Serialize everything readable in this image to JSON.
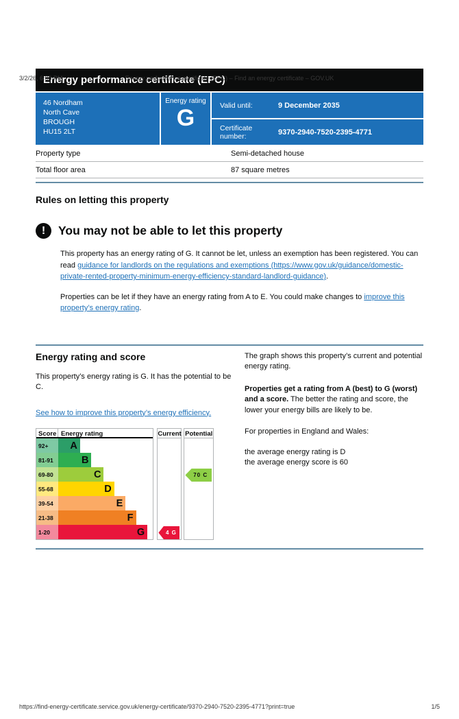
{
  "print_header": {
    "datetime": "3/2/26, 6:00 PM",
    "title": "Energy performance certificate (EPC) – Find an energy certificate – GOV.UK"
  },
  "print_footer": {
    "url": "https://find-energy-certificate.service.gov.uk/energy-certificate/9370-2940-7520-2395-4771?print=true",
    "page": "1/5"
  },
  "banner": {
    "title": "Energy performance certificate (EPC)"
  },
  "certificate": {
    "address_lines": [
      "46 Nordham",
      "North Cave",
      "BROUGH",
      "HU15 2LT"
    ],
    "rating_label": "Energy rating",
    "rating": "G",
    "valid_until_label": "Valid until:",
    "valid_until": "9 December 2035",
    "certificate_number_label": "Certificate number:",
    "certificate_number": "9370-2940-7520-2395-4771"
  },
  "property": {
    "rows": [
      {
        "label": "Property type",
        "value": "Semi-detached house"
      },
      {
        "label": "Total floor area",
        "value": "87 square metres"
      }
    ]
  },
  "rules": {
    "heading": "Rules on letting this property",
    "warning_title": "You may not be able to let this property",
    "para1_before": "This property has an energy rating of G. It cannot be let, unless an exemption has been registered. You can read ",
    "para1_link": "guidance for landlords on the regulations and exemptions (https://www.gov.uk/guidance/domestic-private-rented-property-minimum-energy-efficiency-standard-landlord-guidance)",
    "para1_after": ".",
    "para2_before": "Properties can be let if they have an energy rating from A to E. You could make changes to ",
    "para2_link": "improve this property’s energy rating",
    "para2_after": "."
  },
  "rating_section": {
    "heading": "Energy rating and score",
    "intro": "This property’s energy rating is G. It has the potential to be C.",
    "improve_link": "See how to improve this property’s energy efficiency.",
    "right_para1": "The graph shows this property’s current and potential energy rating.",
    "right_para2_bold": "Properties get a rating from A (best) to G (worst) and a score.",
    "right_para2_rest": " The better the rating and score, the lower your energy bills are likely to be.",
    "right_para3": "For properties in England and Wales:",
    "right_para4": "the average energy rating is D",
    "right_para5": "the average energy score is 60"
  },
  "chart_data": {
    "type": "epc-rating-bars",
    "title_columns": [
      "Score",
      "Energy rating",
      "Current",
      "Potential"
    ],
    "bands": [
      {
        "score": "92+",
        "letter": "A",
        "bar_color": "#2c9e68",
        "tint_color": "#7ec9a4",
        "width_pct": 23
      },
      {
        "score": "81-91",
        "letter": "B",
        "bar_color": "#2eae51",
        "tint_color": "#82cd93",
        "width_pct": 35
      },
      {
        "score": "69-80",
        "letter": "C",
        "bar_color": "#9dcc3c",
        "tint_color": "#c3e294",
        "width_pct": 48
      },
      {
        "score": "55-68",
        "letter": "D",
        "bar_color": "#ffd500",
        "tint_color": "#ffe97f",
        "width_pct": 59
      },
      {
        "score": "39-54",
        "letter": "E",
        "bar_color": "#fbaa65",
        "tint_color": "#fdd0a4",
        "width_pct": 71
      },
      {
        "score": "21-38",
        "letter": "F",
        "bar_color": "#f08023",
        "tint_color": "#f6bc86",
        "width_pct": 82
      },
      {
        "score": "1-20",
        "letter": "G",
        "bar_color": "#e9153b",
        "tint_color": "#f3899d",
        "width_pct": 94
      }
    ],
    "current": {
      "label": "4 G",
      "band": "G",
      "color": "#e9153b",
      "text_color": "#ffffff"
    },
    "potential": {
      "label": "70 C",
      "band": "C",
      "color": "#8dce46",
      "text_color": "#0b0c0c"
    }
  },
  "colors": {
    "govuk_blue": "#1d70b8",
    "band_black": "#0b0c0c",
    "divider_blue": "#648ca5",
    "table_border": "#b1b4b6"
  }
}
